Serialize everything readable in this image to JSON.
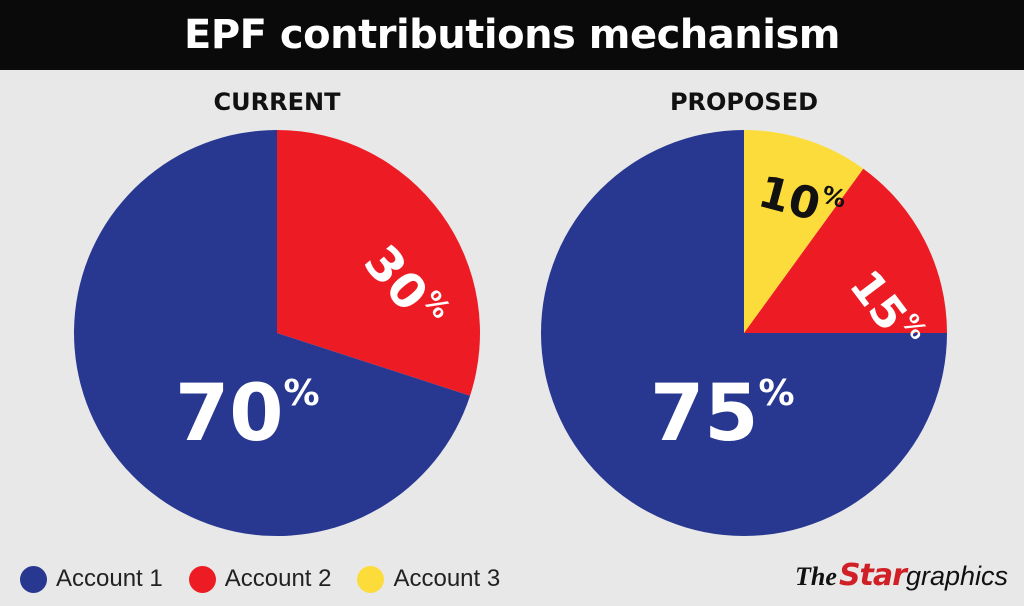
{
  "title": "EPF contributions mechanism",
  "legend": [
    {
      "name": "Account 1",
      "color": "#283891"
    },
    {
      "name": "Account 2",
      "color": "#ed1c24"
    },
    {
      "name": "Account 3",
      "color": "#fcdc3b"
    }
  ],
  "brand": {
    "the": "The",
    "star": "Star",
    "graphics": "graphics"
  },
  "chart_data": [
    {
      "type": "pie",
      "title": "CURRENT",
      "categories": [
        "Account 1",
        "Account 2"
      ],
      "values": [
        70,
        30
      ],
      "labels": [
        "70",
        "30"
      ],
      "unit": "%",
      "colors": [
        "#283891",
        "#ed1c24"
      ]
    },
    {
      "type": "pie",
      "title": "PROPOSED",
      "categories": [
        "Account 1",
        "Account 2",
        "Account 3"
      ],
      "values": [
        75,
        15,
        10
      ],
      "labels": [
        "75",
        "15",
        "10"
      ],
      "unit": "%",
      "colors": [
        "#283891",
        "#ed1c24",
        "#fcdc3b"
      ]
    }
  ]
}
